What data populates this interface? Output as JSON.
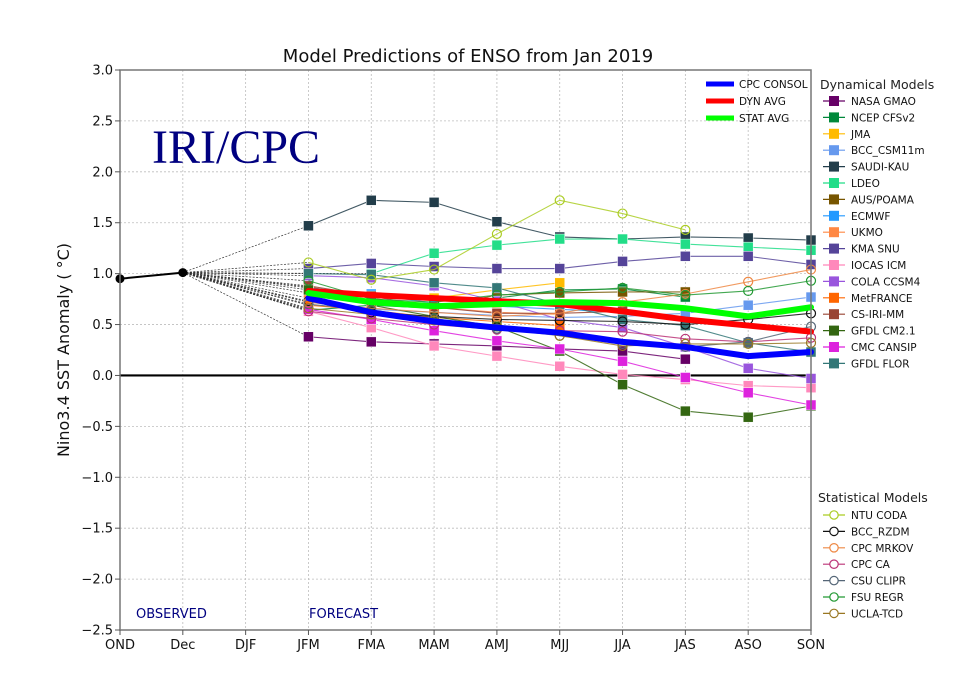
{
  "colors": {
    "annotation": "#000080",
    "zero_line": "#000000",
    "observed": "#000000"
  },
  "chart_data": {
    "type": "line",
    "title": "Model Predictions of ENSO from Jan 2019",
    "xlabel": "",
    "ylabel": "Nino3.4 SST Anomaly ( °C)",
    "categories": [
      "OND",
      "Dec",
      "DJF",
      "JFM",
      "FMA",
      "MAM",
      "AMJ",
      "MJJ",
      "JJA",
      "JAS",
      "ASO",
      "SON"
    ],
    "ylim": [
      -2.5,
      3.0
    ],
    "yticks": [
      3.0,
      2.5,
      2.0,
      1.5,
      1.0,
      0.5,
      0.0,
      -0.5,
      -1.0,
      -1.5,
      -2.0,
      -2.5
    ],
    "ytick_labels": [
      "3.0",
      "2.5",
      "2.0",
      "1.5",
      "1.0",
      "0.5",
      "0.0",
      "−0.5",
      "−1.0",
      "−1.5",
      "−2.0",
      "−2.5"
    ],
    "grid": true,
    "watermark": "IRI/CPC",
    "annotations": {
      "observed": "OBSERVED",
      "forecast": "FORECAST"
    },
    "observed": {
      "name": "Observed",
      "categories": [
        "OND",
        "Dec"
      ],
      "values": [
        0.95,
        1.01
      ],
      "color": "#000000"
    },
    "averages": [
      {
        "name": "CPC CONSOL",
        "color": "#0000ff",
        "start": 3,
        "values": [
          0.76,
          0.62,
          0.53,
          0.47,
          0.42,
          0.33,
          0.28,
          0.19,
          0.23
        ]
      },
      {
        "name": "DYN AVG",
        "color": "#ff0000",
        "start": 3,
        "values": [
          0.83,
          0.79,
          0.76,
          0.73,
          0.7,
          0.63,
          0.55,
          0.49,
          0.43
        ]
      },
      {
        "name": "STAT AVG",
        "color": "#00ff00",
        "start": 3,
        "values": [
          0.81,
          0.72,
          0.68,
          0.7,
          0.72,
          0.71,
          0.66,
          0.58,
          0.67
        ]
      }
    ],
    "legend": {
      "averages_placement": "top-right-inside",
      "dynamical_title": "Dynamical Models",
      "statistical_title": "Statistical Models",
      "placement": "right"
    },
    "dynamical_models": [
      {
        "name": "NASA GMAO",
        "color": "#660066",
        "start": 3,
        "values": [
          0.38,
          0.33,
          0.31,
          0.29,
          0.26,
          0.24,
          0.16
        ]
      },
      {
        "name": "NCEP CFSv2",
        "color": "#00883a",
        "start": 3,
        "values": [
          0.64,
          0.69,
          0.66,
          0.76,
          0.84,
          0.85,
          0.77
        ]
      },
      {
        "name": "JMA",
        "color": "#ffbb00",
        "start": 3,
        "values": [
          0.76,
          0.79,
          0.76,
          0.84,
          0.91
        ]
      },
      {
        "name": "BCC_CSM11m",
        "color": "#6699ee",
        "start": 3,
        "values": [
          0.72,
          0.65,
          0.62,
          0.59,
          0.57,
          0.58,
          0.61,
          0.69,
          0.77
        ]
      },
      {
        "name": "SAUDI-KAU",
        "color": "#223d4a",
        "start": 3,
        "values": [
          1.47,
          1.72,
          1.7,
          1.51,
          1.36,
          1.34,
          1.36,
          1.35,
          1.33
        ]
      },
      {
        "name": "LDEO",
        "color": "#22dd88",
        "start": 4,
        "values": [
          1.0,
          1.2,
          1.28,
          1.34,
          1.34,
          1.29,
          1.26,
          1.23
        ]
      },
      {
        "name": "AUS/POAMA",
        "color": "#775500",
        "start": 3,
        "values": [
          0.87,
          0.76,
          0.66,
          0.79,
          0.81,
          0.82,
          0.82
        ]
      },
      {
        "name": "ECMWF",
        "color": "#2299ff",
        "start": 3,
        "values": [
          0.86,
          0.8,
          0.71,
          0.68,
          0.65,
          0.62
        ]
      },
      {
        "name": "UKMO",
        "color": "#ff8844",
        "start": 3,
        "values": [
          0.81,
          0.72,
          0.67,
          0.62,
          0.6
        ]
      },
      {
        "name": "KMA SNU",
        "color": "#554499",
        "start": 3,
        "values": [
          1.05,
          1.1,
          1.07,
          1.05,
          1.05,
          1.12,
          1.17,
          1.17,
          1.09
        ]
      },
      {
        "name": "IOCAS ICM",
        "color": "#ff88bb",
        "start": 3,
        "values": [
          0.63,
          0.47,
          0.29,
          0.19,
          0.09,
          0.01,
          -0.04,
          -0.1,
          -0.12
        ]
      },
      {
        "name": "COLA CCSM4",
        "color": "#9955dd",
        "start": 3,
        "values": [
          0.98,
          0.96,
          0.88,
          0.73,
          0.55,
          0.47,
          0.28,
          0.07,
          -0.03
        ]
      },
      {
        "name": "MetFRANCE",
        "color": "#ff6600",
        "start": 3,
        "values": [
          0.69,
          0.64,
          0.57,
          0.53,
          0.49
        ]
      },
      {
        "name": "CS-IRI-MM",
        "color": "#994433",
        "start": 3,
        "values": [
          0.88,
          0.78,
          0.67,
          0.61,
          0.61,
          0.63
        ]
      },
      {
        "name": "GFDL CM2.1",
        "color": "#336611",
        "start": 3,
        "values": [
          0.84,
          0.69,
          0.58,
          0.48,
          0.24,
          -0.09,
          -0.35,
          -0.41,
          -0.3
        ]
      },
      {
        "name": "CMC CANSIP",
        "color": "#dd22dd",
        "start": 3,
        "values": [
          0.65,
          0.55,
          0.44,
          0.34,
          0.26,
          0.14,
          -0.02,
          -0.17,
          -0.29
        ]
      },
      {
        "name": "GFDL FLOR",
        "color": "#337777",
        "start": 3,
        "values": [
          1.0,
          0.99,
          0.91,
          0.86,
          0.7,
          0.55,
          0.49,
          0.32,
          0.23
        ]
      }
    ],
    "statistical_models": [
      {
        "name": "NTU CODA",
        "color": "#aacc22",
        "start": 3,
        "values": [
          1.11,
          0.94,
          1.04,
          1.39,
          1.72,
          1.59,
          1.43
        ]
      },
      {
        "name": "BCC_RZDM",
        "color": "#111111",
        "start": 3,
        "values": [
          0.73,
          0.62,
          0.58,
          0.55,
          0.54,
          0.53,
          0.5,
          0.55,
          0.61
        ]
      },
      {
        "name": "CPC MRKOV",
        "color": "#ee8844",
        "start": 3,
        "values": [
          0.72,
          0.66,
          0.62,
          0.58,
          0.61,
          0.72,
          0.8,
          0.92,
          1.04
        ]
      },
      {
        "name": "CPC CA",
        "color": "#bb3377",
        "start": 3,
        "values": [
          0.63,
          0.56,
          0.5,
          0.45,
          0.44,
          0.43,
          0.36,
          0.33,
          0.37
        ]
      },
      {
        "name": "CSU CLIPR",
        "color": "#556677",
        "start": 3,
        "values": [
          0.7,
          0.64,
          0.56,
          0.46,
          0.39,
          0.31,
          0.28,
          0.33,
          0.48
        ]
      },
      {
        "name": "FSU REGR",
        "color": "#229933",
        "start": 3,
        "values": [
          0.93,
          0.75,
          0.72,
          0.79,
          0.82,
          0.86,
          0.79,
          0.83,
          0.93
        ]
      },
      {
        "name": "UCLA-TCD",
        "color": "#997722",
        "start": 3,
        "values": [
          0.66,
          0.6,
          0.54,
          0.49,
          0.39,
          0.29,
          0.31,
          0.31,
          0.32
        ]
      }
    ]
  }
}
